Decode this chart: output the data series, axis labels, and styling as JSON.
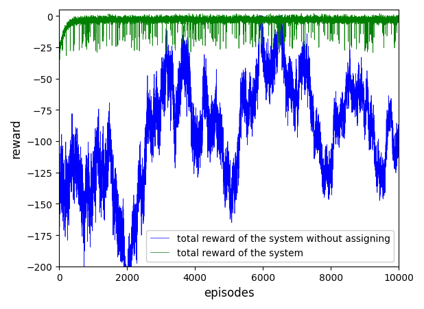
{
  "title": "",
  "xlabel": "episodes",
  "ylabel": "reward",
  "xlim": [
    0,
    10000
  ],
  "ylim": [
    -200,
    5
  ],
  "n_episodes": 10000,
  "blue_label": "total reward of the system without assigning",
  "green_label": "total reward of the system",
  "blue_color": "#0000ff",
  "green_color": "#008000",
  "seed": 42,
  "figsize": [
    6.18,
    4.52
  ],
  "dpi": 100
}
